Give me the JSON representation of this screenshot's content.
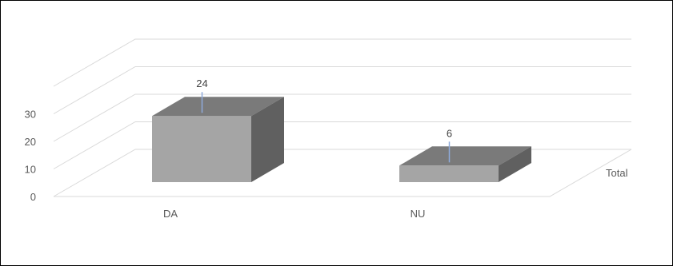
{
  "chart_data": {
    "type": "bar",
    "style": "3d-column",
    "categories": [
      "DA",
      "NU"
    ],
    "series": [
      {
        "name": "Total",
        "values": [
          24,
          6
        ]
      }
    ],
    "data_labels": [
      "24",
      "6"
    ],
    "yticks": [
      "0",
      "10",
      "20",
      "30"
    ],
    "ylim": [
      0,
      40
    ],
    "grid": true,
    "legend": "right",
    "colors": {
      "bar_front": "#a5a5a5",
      "bar_top": "#7a7a7a",
      "bar_side": "#606060",
      "grid": "#d9d9d9"
    }
  }
}
